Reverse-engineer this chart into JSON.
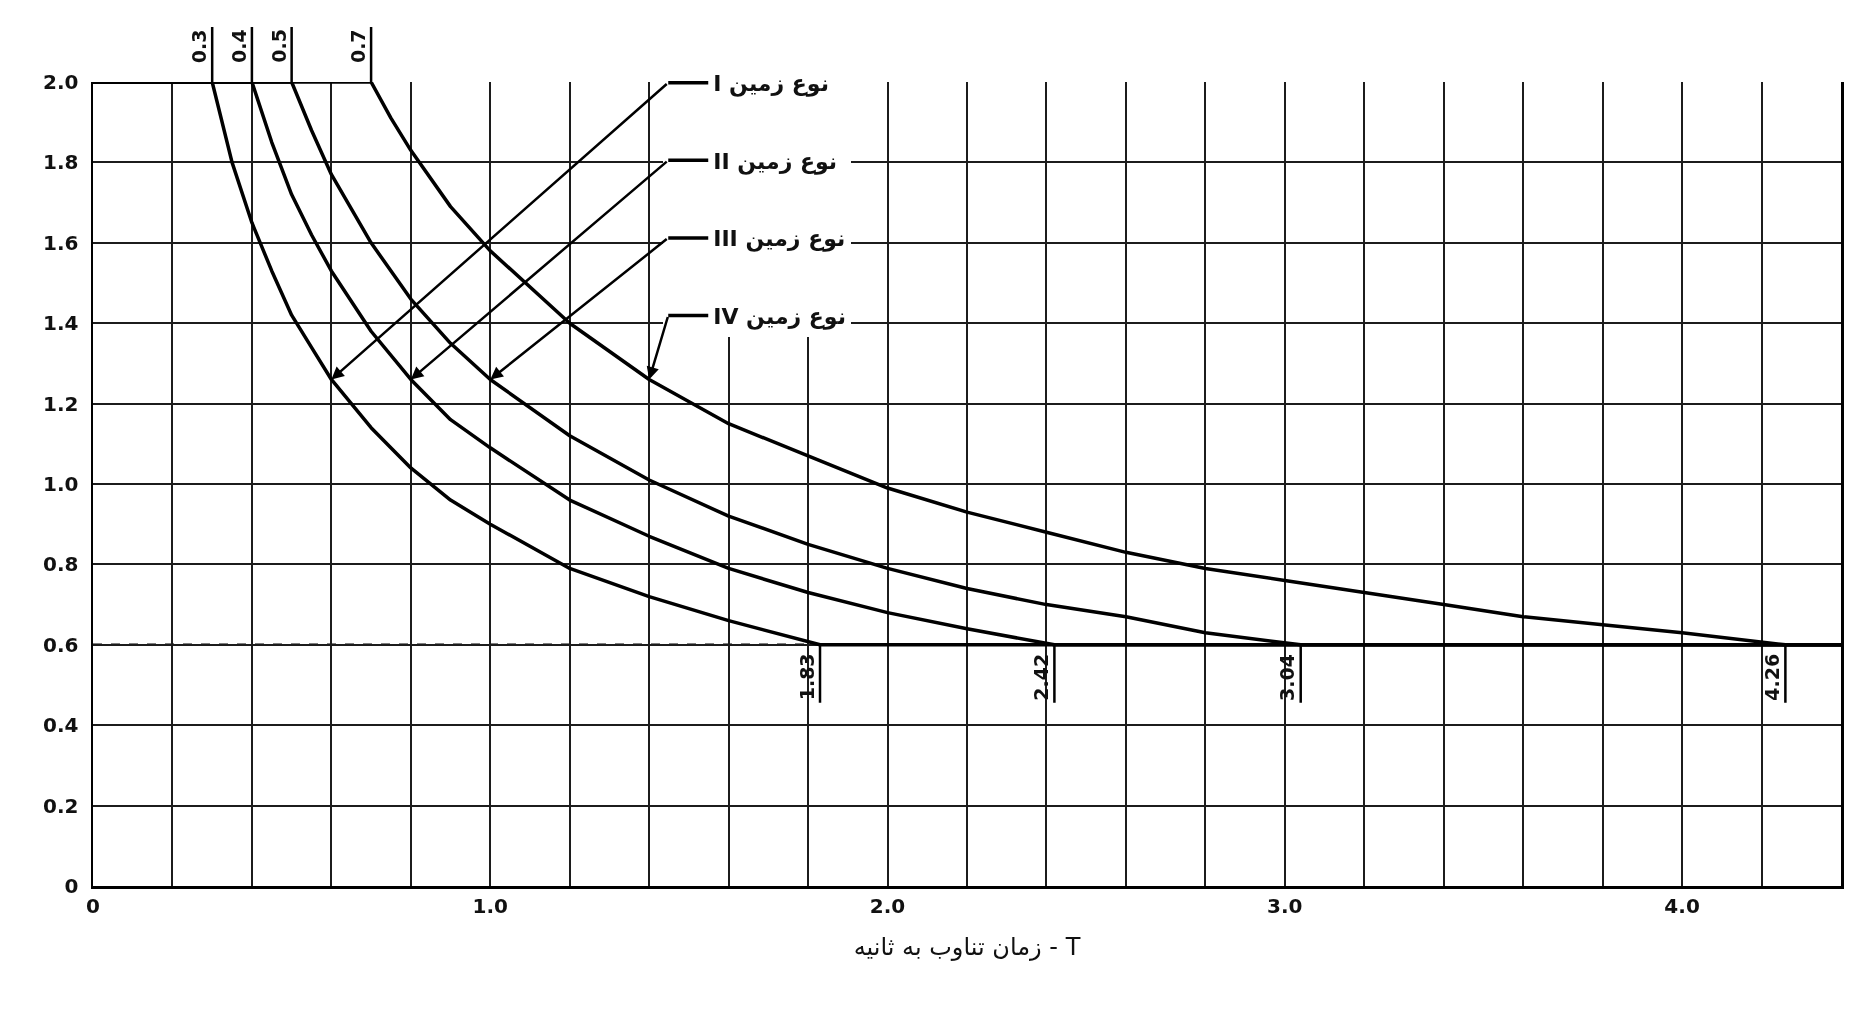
{
  "chart_data": {
    "type": "line",
    "xlabel": "T - زمان تناوب به ثانیه",
    "series": [
      {
        "name": "نوع زمین I",
        "color": "#000000",
        "x": [
          0,
          0.3,
          0.35,
          0.4,
          0.45,
          0.5,
          0.55,
          0.6,
          0.7,
          0.8,
          0.9,
          1.0,
          1.2,
          1.4,
          1.6,
          1.83,
          4.4
        ],
        "values": [
          2.0,
          2.0,
          1.8,
          1.65,
          1.53,
          1.42,
          1.34,
          1.26,
          1.14,
          1.04,
          0.96,
          0.9,
          0.79,
          0.72,
          0.66,
          0.6,
          0.6
        ]
      },
      {
        "name": "نوع زمین II",
        "color": "#000000",
        "x": [
          0,
          0.4,
          0.45,
          0.5,
          0.55,
          0.6,
          0.7,
          0.8,
          0.9,
          1.0,
          1.2,
          1.4,
          1.6,
          1.8,
          2.0,
          2.2,
          2.42,
          4.4
        ],
        "values": [
          2.0,
          2.0,
          1.85,
          1.72,
          1.62,
          1.53,
          1.38,
          1.26,
          1.16,
          1.09,
          0.96,
          0.87,
          0.79,
          0.73,
          0.68,
          0.64,
          0.6,
          0.6
        ]
      },
      {
        "name": "نوع زمین III",
        "color": "#000000",
        "x": [
          0,
          0.5,
          0.55,
          0.6,
          0.7,
          0.8,
          0.9,
          1.0,
          1.2,
          1.4,
          1.6,
          1.8,
          2.0,
          2.2,
          2.4,
          2.6,
          2.8,
          3.04,
          4.4
        ],
        "values": [
          2.0,
          2.0,
          1.88,
          1.77,
          1.6,
          1.46,
          1.35,
          1.26,
          1.12,
          1.01,
          0.92,
          0.85,
          0.79,
          0.74,
          0.7,
          0.67,
          0.63,
          0.6,
          0.6
        ]
      },
      {
        "name": "نوع زمین IV",
        "color": "#000000",
        "x": [
          0,
          0.7,
          0.75,
          0.8,
          0.9,
          1.0,
          1.2,
          1.4,
          1.6,
          1.8,
          2.0,
          2.2,
          2.4,
          2.6,
          2.8,
          3.0,
          3.2,
          3.4,
          3.6,
          3.8,
          4.0,
          4.26,
          4.4
        ],
        "values": [
          2.0,
          2.0,
          1.91,
          1.83,
          1.69,
          1.58,
          1.4,
          1.26,
          1.15,
          1.07,
          0.99,
          0.93,
          0.88,
          0.83,
          0.79,
          0.76,
          0.73,
          0.7,
          0.67,
          0.65,
          0.63,
          0.6,
          0.6
        ]
      }
    ],
    "xlim": [
      0,
      4.4
    ],
    "ylim": [
      0,
      2.0
    ],
    "xticks": [
      0,
      {
        "value": 0.2,
        "label": null
      },
      {
        "value": 0.4,
        "label": null
      },
      {
        "value": 0.6,
        "label": null
      },
      {
        "value": 0.8,
        "label": null
      },
      {
        "value": 1,
        "label": "1.0"
      },
      {
        "value": 1.2,
        "label": null
      },
      {
        "value": 1.4,
        "label": null
      },
      {
        "value": 1.6,
        "label": null
      },
      {
        "value": 1.8,
        "label": null
      },
      {
        "value": 2,
        "label": "2.0"
      },
      {
        "value": 2.2,
        "label": null
      },
      {
        "value": 2.4,
        "label": null
      },
      {
        "value": 2.6,
        "label": null
      },
      {
        "value": 2.8,
        "label": null
      },
      {
        "value": 3,
        "label": "3.0"
      },
      {
        "value": 3.2,
        "label": null
      },
      {
        "value": 3.4,
        "label": null
      },
      {
        "value": 3.6,
        "label": null
      },
      {
        "value": 3.8,
        "label": null
      },
      {
        "value": 4,
        "label": "4.0"
      },
      {
        "value": 4.2,
        "label": null
      },
      {
        "value": 4.4,
        "label": null
      }
    ],
    "yticks": [
      0,
      0.2,
      0.4,
      0.6,
      0.8,
      {
        "value": 1,
        "label": "1.0"
      },
      1.2,
      1.4,
      1.6,
      1.8,
      {
        "value": 2,
        "label": "2.0"
      }
    ],
    "grid": true,
    "legend": "top",
    "ref_lines": [
      {
        "axis": "y",
        "value": 0.6,
        "line_style": "dashed",
        "color": "#000000"
      }
    ],
    "annotations": [
      {
        "text": "0.3",
        "x": 0.3,
        "y": 2.0
      },
      {
        "text": "0.4",
        "x": 0.4,
        "y": 2.0
      },
      {
        "text": "0.5",
        "x": 0.5,
        "y": 2.0
      },
      {
        "text": "0.7",
        "x": 0.7,
        "y": 2.0
      },
      {
        "text": "1.83",
        "x": 1.83,
        "y": 0.6
      },
      {
        "text": "2.42",
        "x": 2.42,
        "y": 0.6
      },
      {
        "text": "3.04",
        "x": 3.04,
        "y": 0.6
      },
      {
        "text": "4.26",
        "x": 4.26,
        "y": 0.6
      }
    ]
  }
}
